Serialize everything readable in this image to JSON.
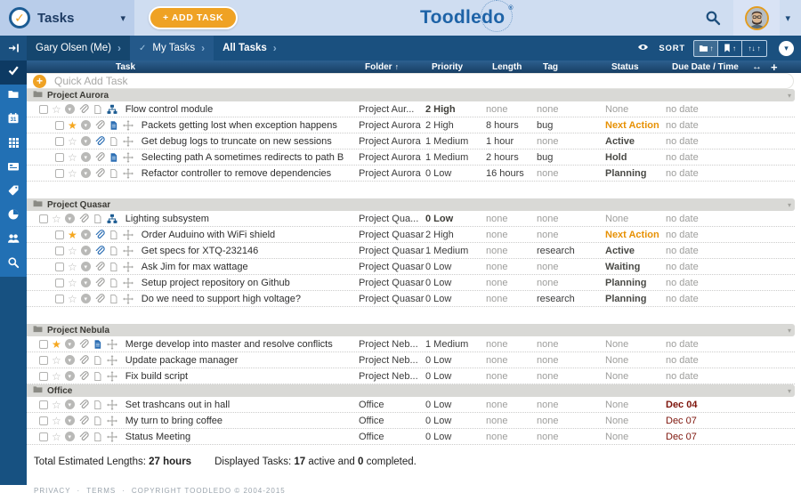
{
  "colors": {
    "header_bg": "#cfddf1",
    "header_left_bg": "#b9cdea",
    "navbar_bg": "#1a507f",
    "sidebar_bg": "#2270b4",
    "sidebar_active_bg": "#0d3a63",
    "accent_orange": "#efa224",
    "logo_blue": "#1e63a7",
    "section_gray": "#d9d9d6",
    "next_action_orange": "#e79104",
    "due_red": "#7e150c",
    "row_blue_icon": "#2a6db3"
  },
  "header": {
    "app_title": "Tasks",
    "add_task_label": "+ ADD TASK",
    "logo_prefix": "Toodle",
    "logo_suffix": "do",
    "logo_reg": "®"
  },
  "navbar": {
    "breadcrumb": [
      {
        "label": "Gary Olsen (Me)",
        "style": "c1",
        "check": false
      },
      {
        "label": "My Tasks",
        "style": "c2",
        "check": true
      },
      {
        "label": "All Tasks",
        "style": "c3",
        "check": false
      }
    ],
    "separator": "›",
    "sort_label": "SORT",
    "sort_arrow_up": "↑",
    "sort_arrows": "↑↓"
  },
  "sidebar": {
    "items": [
      {
        "name": "tasks",
        "icon": "check-icon",
        "active": true
      },
      {
        "name": "folders",
        "icon": "folder-icon",
        "active": false
      },
      {
        "name": "calendar",
        "icon": "calendar-icon",
        "active": false
      },
      {
        "name": "grid",
        "icon": "grid-icon",
        "active": false
      },
      {
        "name": "notes",
        "icon": "card-icon",
        "active": false
      },
      {
        "name": "tags",
        "icon": "tag-icon",
        "active": false
      },
      {
        "name": "recent",
        "icon": "clock-icon",
        "active": false
      },
      {
        "name": "collaboration",
        "icon": "people-icon",
        "active": false
      },
      {
        "name": "search",
        "icon": "search-icon",
        "active": false
      }
    ]
  },
  "table": {
    "columns": [
      "Task",
      "Folder",
      "Priority",
      "Length",
      "Tag",
      "Status",
      "Due Date / Time"
    ],
    "folder_sort_arrow": "↑",
    "resize_icon": "↔",
    "add_column_icon": "+",
    "quick_add_placeholder": "Quick Add Task",
    "quick_add_plus": "+"
  },
  "sections": [
    {
      "name": "Project Aurora",
      "gap_after": true,
      "rows": [
        {
          "task": "Flow control module",
          "kind": "parent",
          "starred": false,
          "has_attachment": false,
          "has_note": false,
          "folder": "Project Aur...",
          "priority": "2 High",
          "priority_strong": true,
          "length": "none",
          "tag": "none",
          "status": "None",
          "due": "no date",
          "due_strong": false
        },
        {
          "task": "Packets getting lost when exception happens",
          "kind": "sub",
          "starred": true,
          "has_attachment": false,
          "has_note": true,
          "folder": "Project Aurora",
          "priority": "2 High",
          "priority_strong": false,
          "length": "8 hours",
          "tag": "bug",
          "status": "Next Action",
          "due": "no date",
          "due_strong": false
        },
        {
          "task": "Get debug logs to truncate on new sessions",
          "kind": "sub",
          "starred": false,
          "has_attachment": true,
          "has_note": false,
          "folder": "Project Aurora",
          "priority": "1 Medium",
          "priority_strong": false,
          "length": "1 hour",
          "tag": "none",
          "status": "Active",
          "due": "no date",
          "due_strong": false
        },
        {
          "task": "Selecting path A sometimes redirects to path B",
          "kind": "sub",
          "starred": false,
          "has_attachment": false,
          "has_note": true,
          "folder": "Project Aurora",
          "priority": "1 Medium",
          "priority_strong": false,
          "length": "2 hours",
          "tag": "bug",
          "status": "Hold",
          "due": "no date",
          "due_strong": false
        },
        {
          "task": "Refactor controller to remove dependencies",
          "kind": "sub",
          "starred": false,
          "has_attachment": false,
          "has_note": false,
          "folder": "Project Aurora",
          "priority": "0 Low",
          "priority_strong": false,
          "length": "16 hours",
          "tag": "none",
          "status": "Planning",
          "due": "no date",
          "due_strong": false
        }
      ]
    },
    {
      "name": "Project Quasar",
      "gap_after": true,
      "rows": [
        {
          "task": "Lighting subsystem",
          "kind": "parent",
          "starred": false,
          "has_attachment": false,
          "has_note": false,
          "folder": "Project Qua...",
          "priority": "0 Low",
          "priority_strong": true,
          "length": "none",
          "tag": "none",
          "status": "None",
          "due": "no date",
          "due_strong": false
        },
        {
          "task": "Order Auduino with WiFi shield",
          "kind": "sub",
          "starred": true,
          "has_attachment": true,
          "has_note": false,
          "folder": "Project Quasar",
          "priority": "2 High",
          "priority_strong": false,
          "length": "none",
          "tag": "none",
          "status": "Next Action",
          "due": "no date",
          "due_strong": false
        },
        {
          "task": "Get specs for XTQ-232146",
          "kind": "sub",
          "starred": false,
          "has_attachment": true,
          "has_note": false,
          "folder": "Project Quasar",
          "priority": "1 Medium",
          "priority_strong": false,
          "length": "none",
          "tag": "research",
          "status": "Active",
          "due": "no date",
          "due_strong": false
        },
        {
          "task": "Ask Jim for max wattage",
          "kind": "sub",
          "starred": false,
          "has_attachment": false,
          "has_note": false,
          "folder": "Project Quasar",
          "priority": "0 Low",
          "priority_strong": false,
          "length": "none",
          "tag": "none",
          "status": "Waiting",
          "due": "no date",
          "due_strong": false
        },
        {
          "task": "Setup project repository on Github",
          "kind": "sub",
          "starred": false,
          "has_attachment": false,
          "has_note": false,
          "folder": "Project Quasar",
          "priority": "0 Low",
          "priority_strong": false,
          "length": "none",
          "tag": "none",
          "status": "Planning",
          "due": "no date",
          "due_strong": false
        },
        {
          "task": "Do we need to support high voltage?",
          "kind": "sub",
          "starred": false,
          "has_attachment": false,
          "has_note": false,
          "folder": "Project Quasar",
          "priority": "0 Low",
          "priority_strong": false,
          "length": "none",
          "tag": "research",
          "status": "Planning",
          "due": "no date",
          "due_strong": false
        }
      ]
    },
    {
      "name": "Project Nebula",
      "gap_after": false,
      "rows": [
        {
          "task": "Merge develop into master and resolve conflicts",
          "kind": "top",
          "starred": true,
          "has_attachment": false,
          "has_note": true,
          "folder": "Project Neb...",
          "priority": "1 Medium",
          "priority_strong": false,
          "length": "none",
          "tag": "none",
          "status": "None",
          "due": "no date",
          "due_strong": false
        },
        {
          "task": "Update package manager",
          "kind": "top",
          "starred": false,
          "has_attachment": false,
          "has_note": false,
          "folder": "Project Neb...",
          "priority": "0 Low",
          "priority_strong": false,
          "length": "none",
          "tag": "none",
          "status": "None",
          "due": "no date",
          "due_strong": false
        },
        {
          "task": "Fix build script",
          "kind": "top",
          "starred": false,
          "has_attachment": false,
          "has_note": false,
          "folder": "Project Neb...",
          "priority": "0 Low",
          "priority_strong": false,
          "length": "none",
          "tag": "none",
          "status": "None",
          "due": "no date",
          "due_strong": false
        }
      ]
    },
    {
      "name": "Office",
      "gap_after": false,
      "rows": [
        {
          "task": "Set trashcans out in hall",
          "kind": "top",
          "starred": false,
          "has_attachment": false,
          "has_note": false,
          "folder": "Office",
          "priority": "0 Low",
          "priority_strong": false,
          "length": "none",
          "tag": "none",
          "status": "None",
          "due": "Dec 04",
          "due_strong": true
        },
        {
          "task": "My turn to bring coffee",
          "kind": "top",
          "starred": false,
          "has_attachment": false,
          "has_note": false,
          "folder": "Office",
          "priority": "0 Low",
          "priority_strong": false,
          "length": "none",
          "tag": "none",
          "status": "None",
          "due": "Dec 07",
          "due_strong": false
        },
        {
          "task": "Status Meeting",
          "kind": "top",
          "starred": false,
          "has_attachment": false,
          "has_note": false,
          "folder": "Office",
          "priority": "0 Low",
          "priority_strong": false,
          "length": "none",
          "tag": "none",
          "status": "None",
          "due": "Dec 07",
          "due_strong": false
        }
      ]
    }
  ],
  "footer": {
    "total_label": "Total Estimated Lengths:",
    "total_value": "27 hours",
    "displayed_label": "Displayed Tasks:",
    "active_value": "17",
    "active_suffix": "active and",
    "completed_value": "0",
    "completed_suffix": "completed."
  },
  "legal": {
    "privacy": "PRIVACY",
    "terms": "TERMS",
    "copyright": "COPYRIGHT TOODLEDO © 2004-2015",
    "dot": "·"
  }
}
